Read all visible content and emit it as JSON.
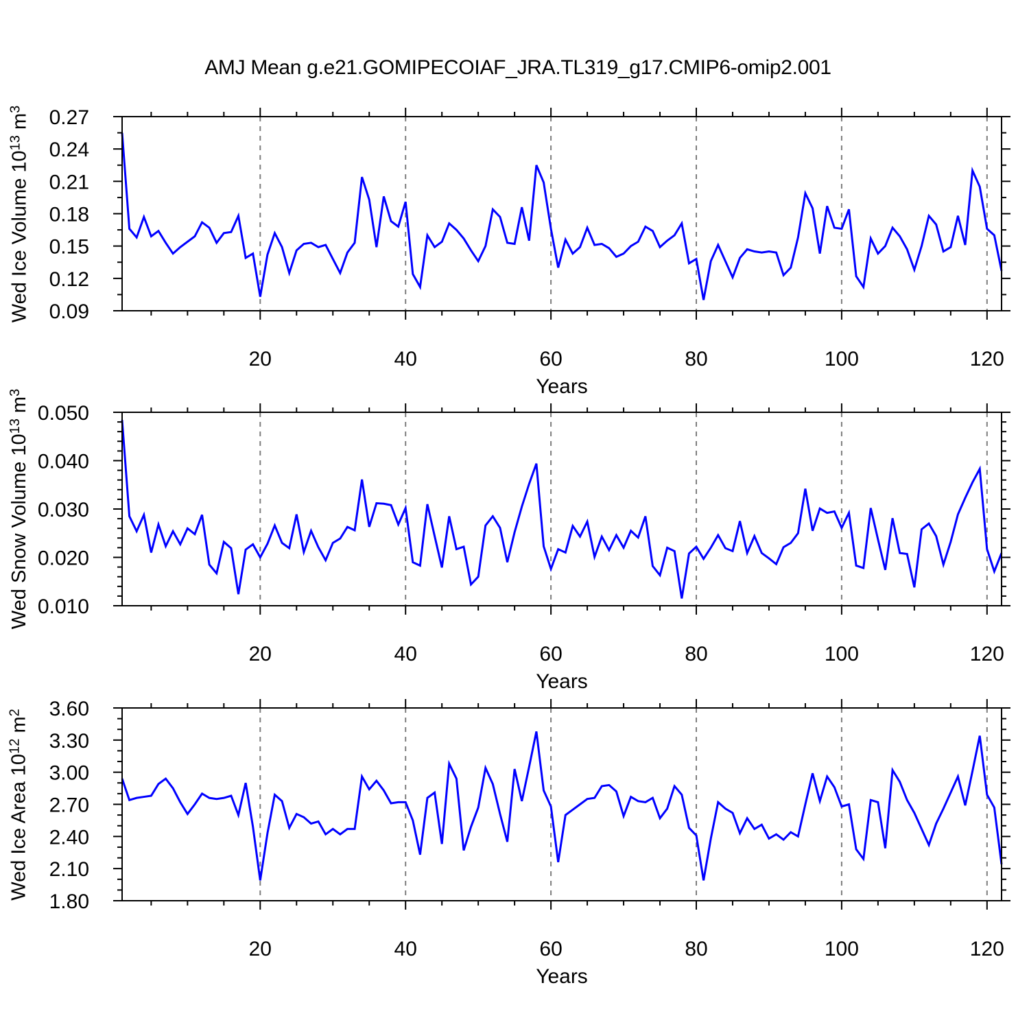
{
  "title": "AMJ Mean g.e21.GOMIPECOIAF_JRA.TL319_g17.CMIP6-omip2.001",
  "colors": {
    "line": "#0000ff",
    "gridline": "#7d7d7d",
    "frame": "#000000"
  },
  "x_axis": {
    "label": "Years",
    "tick_values": [
      20,
      40,
      60,
      80,
      100,
      120
    ],
    "tick_labels": [
      "20",
      "40",
      "60",
      "80",
      "100",
      "120"
    ],
    "minor_step": 5,
    "range": [
      1,
      122
    ]
  },
  "chart_data": [
    {
      "type": "line",
      "name": "wed-ice-volume",
      "ylabel": "Wed Ice Volume 10^13 m^3",
      "ylabel_parts": [
        "Wed Ice Volume 10",
        "13",
        " m",
        "3"
      ],
      "xlabel": "Years",
      "ylim": [
        0.09,
        0.27
      ],
      "yticks": [
        0.09,
        0.12,
        0.15,
        0.18,
        0.21,
        0.24,
        0.27
      ],
      "ytick_labels": [
        "0.09",
        "0.12",
        "0.15",
        "0.18",
        "0.21",
        "0.24",
        "0.27"
      ],
      "y_minor_step": 0.015,
      "x_gridlines": [
        20,
        40,
        60,
        80,
        100,
        120
      ],
      "line_color": "#0000ff",
      "x_start": 1,
      "x_step": 1,
      "values": [
        0.255,
        0.166,
        0.158,
        0.177,
        0.159,
        0.164,
        0.153,
        0.143,
        0.149,
        0.154,
        0.159,
        0.172,
        0.167,
        0.153,
        0.162,
        0.163,
        0.178,
        0.139,
        0.143,
        0.103,
        0.142,
        0.162,
        0.149,
        0.125,
        0.146,
        0.152,
        0.153,
        0.149,
        0.151,
        0.138,
        0.125,
        0.144,
        0.153,
        0.214,
        0.193,
        0.149,
        0.196,
        0.173,
        0.168,
        0.191,
        0.124,
        0.112,
        0.16,
        0.149,
        0.154,
        0.171,
        0.165,
        0.157,
        0.146,
        0.136,
        0.15,
        0.184,
        0.177,
        0.153,
        0.152,
        0.186,
        0.155,
        0.225,
        0.209,
        0.166,
        0.13,
        0.156,
        0.143,
        0.149,
        0.167,
        0.151,
        0.152,
        0.148,
        0.14,
        0.143,
        0.15,
        0.154,
        0.168,
        0.164,
        0.149,
        0.155,
        0.16,
        0.171,
        0.134,
        0.138,
        0.1,
        0.136,
        0.151,
        0.136,
        0.121,
        0.139,
        0.147,
        0.145,
        0.144,
        0.145,
        0.144,
        0.123,
        0.13,
        0.158,
        0.199,
        0.185,
        0.143,
        0.187,
        0.167,
        0.166,
        0.184,
        0.122,
        0.112,
        0.157,
        0.143,
        0.15,
        0.167,
        0.159,
        0.147,
        0.128,
        0.15,
        0.178,
        0.17,
        0.145,
        0.149,
        0.178,
        0.151,
        0.22,
        0.205,
        0.166,
        0.16,
        0.127
      ]
    },
    {
      "type": "line",
      "name": "wed-snow-volume",
      "ylabel": "Wed Snow Volume 10^13 m^3",
      "ylabel_parts": [
        "Wed Snow Volume 10",
        "13",
        " m",
        "3"
      ],
      "xlabel": "Years",
      "ylim": [
        0.01,
        0.05
      ],
      "yticks": [
        0.01,
        0.02,
        0.03,
        0.04,
        0.05
      ],
      "ytick_labels": [
        "0.010",
        "0.020",
        "0.030",
        "0.040",
        "0.050"
      ],
      "y_minor_step": 0.002,
      "x_gridlines": [
        20,
        40,
        60,
        80,
        100,
        120
      ],
      "line_color": "#0000ff",
      "x_start": 1,
      "x_step": 1,
      "values": [
        0.0484,
        0.0285,
        0.0254,
        0.0288,
        0.021,
        0.0268,
        0.0223,
        0.0254,
        0.0227,
        0.026,
        0.0248,
        0.0288,
        0.0185,
        0.0167,
        0.0232,
        0.0219,
        0.0124,
        0.0216,
        0.0227,
        0.02,
        0.0228,
        0.0266,
        0.023,
        0.0219,
        0.0289,
        0.0211,
        0.0255,
        0.0221,
        0.0194,
        0.023,
        0.0239,
        0.0263,
        0.0256,
        0.0361,
        0.0263,
        0.0312,
        0.0311,
        0.0308,
        0.0268,
        0.0302,
        0.019,
        0.0183,
        0.031,
        0.0244,
        0.0179,
        0.0285,
        0.0217,
        0.0222,
        0.0144,
        0.016,
        0.0266,
        0.0285,
        0.0261,
        0.019,
        0.0252,
        0.0305,
        0.0352,
        0.0394,
        0.0223,
        0.0176,
        0.0217,
        0.021,
        0.0265,
        0.0243,
        0.0274,
        0.0201,
        0.0243,
        0.0215,
        0.0246,
        0.022,
        0.0255,
        0.0241,
        0.0285,
        0.0182,
        0.0163,
        0.022,
        0.0213,
        0.0115,
        0.0208,
        0.0222,
        0.0197,
        0.022,
        0.0246,
        0.0219,
        0.0213,
        0.0275,
        0.0209,
        0.0244,
        0.0209,
        0.0198,
        0.0186,
        0.0221,
        0.023,
        0.025,
        0.0342,
        0.0255,
        0.0301,
        0.0292,
        0.0295,
        0.0261,
        0.0292,
        0.0183,
        0.0178,
        0.0302,
        0.0237,
        0.0174,
        0.0281,
        0.0209,
        0.0207,
        0.0138,
        0.0258,
        0.027,
        0.0244,
        0.0185,
        0.0232,
        0.0289,
        0.0323,
        0.0355,
        0.0383,
        0.0217,
        0.0171,
        0.0209
      ]
    },
    {
      "type": "line",
      "name": "wed-ice-area",
      "ylabel": "Wed Ice Area 10^12 m^2",
      "ylabel_parts": [
        "Wed Ice Area 10",
        "12",
        " m",
        "2"
      ],
      "xlabel": "Years",
      "ylim": [
        1.8,
        3.6
      ],
      "yticks": [
        1.8,
        2.1,
        2.4,
        2.7,
        3.0,
        3.3,
        3.6
      ],
      "ytick_labels": [
        "1.80",
        "2.10",
        "2.40",
        "2.70",
        "3.00",
        "3.30",
        "3.60"
      ],
      "y_minor_step": 0.1,
      "x_gridlines": [
        20,
        40,
        60,
        80,
        100,
        120
      ],
      "line_color": "#0000ff",
      "x_start": 1,
      "x_step": 1,
      "values": [
        2.94,
        2.74,
        2.76,
        2.77,
        2.78,
        2.89,
        2.94,
        2.85,
        2.72,
        2.61,
        2.7,
        2.8,
        2.76,
        2.75,
        2.76,
        2.78,
        2.6,
        2.9,
        2.49,
        1.99,
        2.43,
        2.79,
        2.73,
        2.48,
        2.61,
        2.58,
        2.52,
        2.54,
        2.42,
        2.47,
        2.42,
        2.47,
        2.47,
        2.96,
        2.84,
        2.92,
        2.83,
        2.71,
        2.72,
        2.72,
        2.55,
        2.23,
        2.76,
        2.81,
        2.33,
        3.08,
        2.94,
        2.27,
        2.49,
        2.67,
        3.04,
        2.89,
        2.61,
        2.35,
        3.03,
        2.73,
        3.05,
        3.38,
        2.83,
        2.68,
        2.16,
        2.6,
        2.65,
        2.7,
        2.75,
        2.76,
        2.87,
        2.88,
        2.82,
        2.59,
        2.77,
        2.73,
        2.72,
        2.76,
        2.57,
        2.66,
        2.87,
        2.79,
        2.48,
        2.41,
        1.99,
        2.38,
        2.72,
        2.66,
        2.62,
        2.43,
        2.57,
        2.47,
        2.51,
        2.38,
        2.42,
        2.37,
        2.44,
        2.4,
        2.7,
        2.99,
        2.73,
        2.96,
        2.86,
        2.68,
        2.7,
        2.28,
        2.19,
        2.74,
        2.72,
        2.29,
        3.02,
        2.91,
        2.74,
        2.62,
        2.47,
        2.32,
        2.52,
        2.66,
        2.81,
        2.96,
        2.69,
        3.01,
        3.34,
        2.79,
        2.67,
        2.14
      ]
    }
  ]
}
